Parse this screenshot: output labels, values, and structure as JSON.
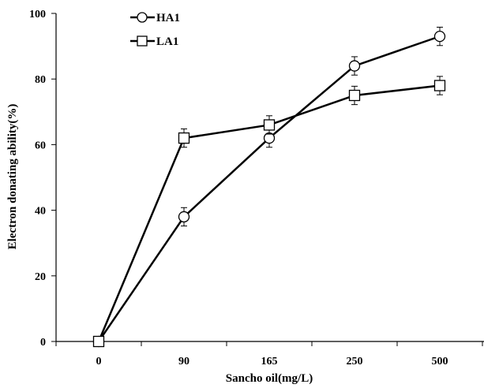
{
  "chart_data": {
    "type": "line",
    "title": "",
    "xlabel": "Sancho oil(mg/L)",
    "ylabel": "Electron donating ability(%)",
    "categories": [
      "0",
      "90",
      "165",
      "250",
      "500"
    ],
    "ylim": [
      0,
      100
    ],
    "yticks": [
      "0",
      "20",
      "40",
      "60",
      "80",
      "100"
    ],
    "grid": false,
    "legend_position": "top-left",
    "series": [
      {
        "name": "HA1",
        "marker": "circle",
        "values": [
          0,
          38,
          62,
          84,
          93
        ],
        "errors": [
          0,
          2.8,
          2.8,
          2.8,
          2.8
        ]
      },
      {
        "name": "LA1",
        "marker": "square",
        "values": [
          0,
          62,
          66,
          75,
          78
        ],
        "errors": [
          0,
          2.8,
          2.8,
          2.8,
          2.8
        ]
      }
    ],
    "colors": {
      "line": "#000000",
      "marker_fill": "#ffffff"
    }
  }
}
